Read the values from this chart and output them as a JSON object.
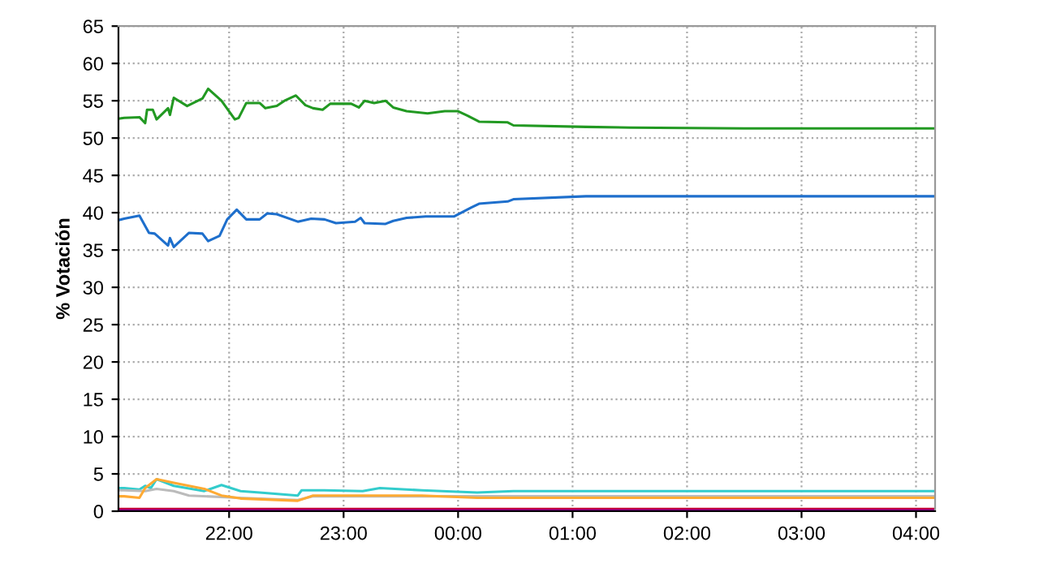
{
  "chart_data": {
    "type": "line",
    "ylabel": "% Votación",
    "xlim": [
      "2000-01-01T21:02",
      "2000-01-02T04:10"
    ],
    "ylim": [
      0,
      65
    ],
    "xticks": [
      {
        "value": "2000-01-01T22:00",
        "label": "22:00"
      },
      {
        "value": "2000-01-01T23:00",
        "label": "23:00"
      },
      {
        "value": "2000-01-02T00:00",
        "label": "00:00"
      },
      {
        "value": "2000-01-02T01:00",
        "label": "01:00"
      },
      {
        "value": "2000-01-02T02:00",
        "label": "02:00"
      },
      {
        "value": "2000-01-02T03:00",
        "label": "03:00"
      },
      {
        "value": "2000-01-02T04:00",
        "label": "04:00"
      }
    ],
    "yticks": [
      0,
      5,
      10,
      15,
      20,
      25,
      30,
      35,
      40,
      45,
      50,
      55,
      60,
      65
    ],
    "grid": true,
    "legend": false,
    "marker": "none",
    "line_style": "solid",
    "series": [
      {
        "color": "#229922",
        "x": [
          "2000-01-01T21:02",
          "2000-01-01T21:05",
          "2000-01-01T21:13",
          "2000-01-01T21:16",
          "2000-01-01T21:17",
          "2000-01-01T21:20",
          "2000-01-01T21:22",
          "2000-01-01T21:28",
          "2000-01-01T21:29",
          "2000-01-01T21:31",
          "2000-01-01T21:38",
          "2000-01-01T21:46",
          "2000-01-01T21:49",
          "2000-01-01T21:56",
          "2000-01-01T22:03",
          "2000-01-01T22:05",
          "2000-01-01T22:09",
          "2000-01-01T22:16",
          "2000-01-01T22:19",
          "2000-01-01T22:25",
          "2000-01-01T22:29",
          "2000-01-01T22:35",
          "2000-01-01T22:40",
          "2000-01-01T22:44",
          "2000-01-01T22:49",
          "2000-01-01T22:53",
          "2000-01-01T23:04",
          "2000-01-01T23:08",
          "2000-01-01T23:11",
          "2000-01-01T23:16",
          "2000-01-01T23:22",
          "2000-01-01T23:26",
          "2000-01-01T23:33",
          "2000-01-01T23:44",
          "2000-01-01T23:53",
          "2000-01-02T00:00",
          "2000-01-02T00:05",
          "2000-01-02T00:11",
          "2000-01-02T00:26",
          "2000-01-02T00:29",
          "2000-01-02T01:07",
          "2000-01-02T01:30",
          "2000-01-02T02:30",
          "2000-01-02T04:10"
        ],
        "values": [
          52.6,
          52.7,
          52.8,
          52.0,
          53.8,
          53.8,
          52.5,
          54.0,
          53.1,
          55.4,
          54.3,
          55.3,
          56.6,
          55.0,
          52.5,
          52.7,
          54.7,
          54.7,
          54.0,
          54.3,
          55.0,
          55.7,
          54.4,
          54.0,
          53.8,
          54.6,
          54.6,
          54.1,
          55.0,
          54.7,
          55.0,
          54.1,
          53.6,
          53.3,
          53.6,
          53.6,
          53.0,
          52.2,
          52.1,
          51.7,
          51.5,
          51.4,
          51.3,
          51.3
        ]
      },
      {
        "color": "#1e6fcc",
        "x": [
          "2000-01-01T21:02",
          "2000-01-01T21:05",
          "2000-01-01T21:13",
          "2000-01-01T21:18",
          "2000-01-01T21:21",
          "2000-01-01T21:28",
          "2000-01-01T21:29",
          "2000-01-01T21:31",
          "2000-01-01T21:39",
          "2000-01-01T21:46",
          "2000-01-01T21:49",
          "2000-01-01T21:55",
          "2000-01-01T21:59",
          "2000-01-01T22:04",
          "2000-01-01T22:09",
          "2000-01-01T22:16",
          "2000-01-01T22:20",
          "2000-01-01T22:25",
          "2000-01-01T22:36",
          "2000-01-01T22:43",
          "2000-01-01T22:50",
          "2000-01-01T22:56",
          "2000-01-01T23:06",
          "2000-01-01T23:09",
          "2000-01-01T23:11",
          "2000-01-01T23:22",
          "2000-01-01T23:26",
          "2000-01-01T23:33",
          "2000-01-01T23:43",
          "2000-01-01T23:58",
          "2000-01-02T00:07",
          "2000-01-02T00:11",
          "2000-01-02T00:26",
          "2000-01-02T00:29",
          "2000-01-02T01:07",
          "2000-01-02T04:10"
        ],
        "values": [
          39.0,
          39.2,
          39.6,
          37.3,
          37.2,
          35.6,
          36.6,
          35.4,
          37.3,
          37.2,
          36.2,
          36.9,
          39.1,
          40.4,
          39.1,
          39.1,
          39.9,
          39.8,
          38.8,
          39.2,
          39.1,
          38.6,
          38.8,
          39.3,
          38.6,
          38.5,
          38.9,
          39.3,
          39.5,
          39.5,
          40.7,
          41.2,
          41.5,
          41.8,
          42.2,
          42.2
        ]
      },
      {
        "color": "#33cccc",
        "x": [
          "2000-01-01T21:02",
          "2000-01-01T21:05",
          "2000-01-01T21:13",
          "2000-01-01T21:16",
          "2000-01-01T21:19",
          "2000-01-01T21:22",
          "2000-01-01T21:31",
          "2000-01-01T21:47",
          "2000-01-01T21:56",
          "2000-01-01T22:06",
          "2000-01-01T22:16",
          "2000-01-01T22:36",
          "2000-01-01T22:38",
          "2000-01-01T22:50",
          "2000-01-01T23:10",
          "2000-01-01T23:19",
          "2000-01-01T23:41",
          "2000-01-02T00:10",
          "2000-01-02T00:29",
          "2000-01-02T04:10"
        ],
        "values": [
          3.1,
          3.1,
          2.9,
          3.4,
          3.1,
          4.3,
          3.4,
          2.7,
          3.5,
          2.7,
          2.5,
          2.1,
          2.8,
          2.8,
          2.7,
          3.1,
          2.8,
          2.5,
          2.7,
          2.7
        ]
      },
      {
        "color": "#bbbbbb",
        "x": [
          "2000-01-01T21:02",
          "2000-01-01T21:05",
          "2000-01-01T21:16",
          "2000-01-01T21:22",
          "2000-01-01T21:31",
          "2000-01-01T21:39",
          "2000-01-01T22:05",
          "2000-01-01T22:36",
          "2000-01-01T22:44",
          "2000-01-01T23:41",
          "2000-01-02T04:10"
        ],
        "values": [
          2.8,
          2.8,
          2.7,
          3.0,
          2.7,
          2.1,
          1.8,
          1.5,
          2.0,
          2.0,
          2.0
        ]
      },
      {
        "color": "#ffaa33",
        "x": [
          "2000-01-01T21:02",
          "2000-01-01T21:05",
          "2000-01-01T21:13",
          "2000-01-01T21:16",
          "2000-01-01T21:22",
          "2000-01-01T21:31",
          "2000-01-01T21:47",
          "2000-01-01T21:56",
          "2000-01-01T22:06",
          "2000-01-01T22:36",
          "2000-01-01T22:44",
          "2000-01-01T23:13",
          "2000-01-01T23:41",
          "2000-01-02T00:10",
          "2000-01-02T04:10"
        ],
        "values": [
          2.0,
          2.0,
          1.8,
          3.1,
          4.3,
          3.8,
          3.0,
          2.1,
          1.7,
          1.4,
          2.1,
          2.1,
          2.1,
          1.8,
          1.8
        ]
      },
      {
        "color": "#cc0033",
        "x": [
          "2000-01-01T21:02",
          "2000-01-02T04:10"
        ],
        "values": [
          0.3,
          0.3
        ]
      },
      {
        "color": "#880088",
        "x": [
          "2000-01-01T21:02",
          "2000-01-02T04:10"
        ],
        "values": [
          0.1,
          0.1
        ]
      }
    ]
  }
}
